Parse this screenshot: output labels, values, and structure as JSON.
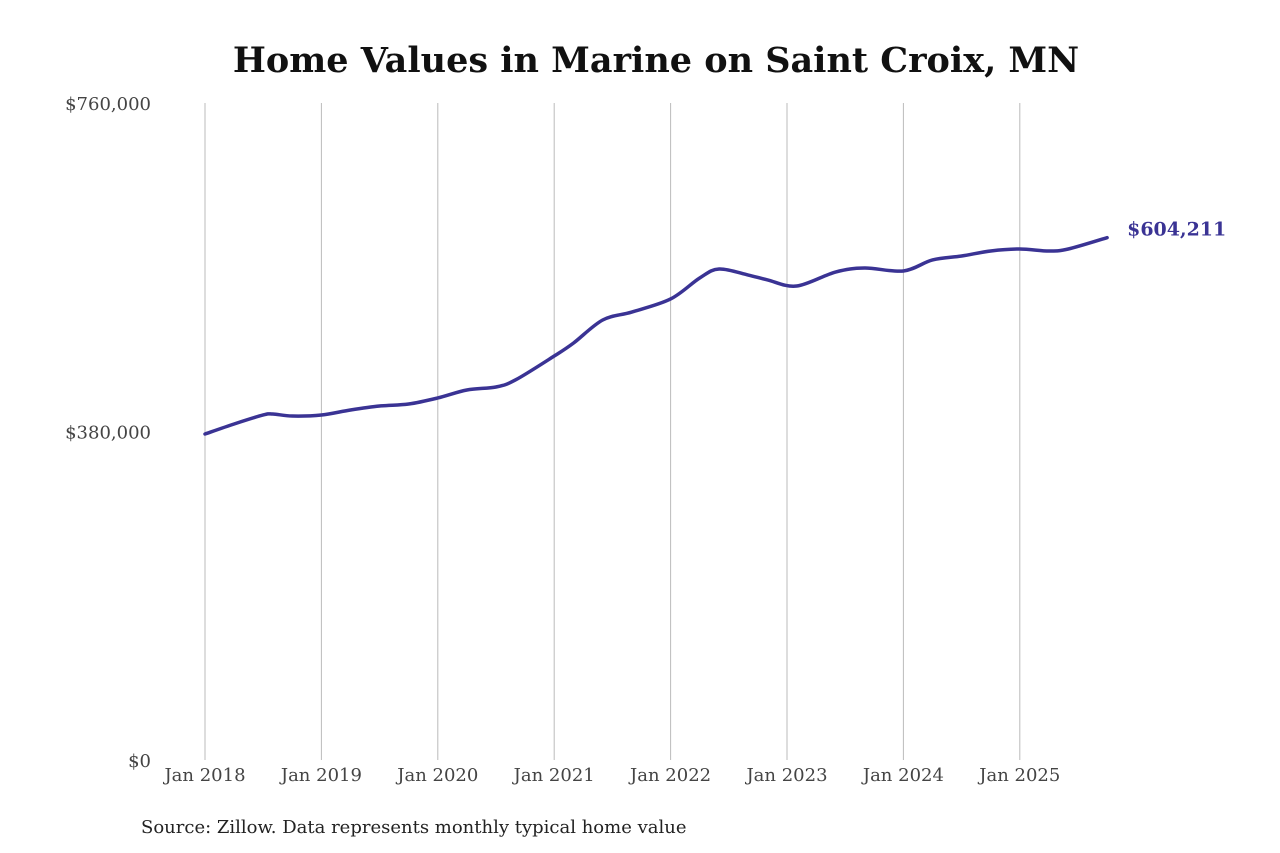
{
  "chart_data": {
    "type": "line",
    "title": "Home Values in Marine on Saint Croix, MN",
    "xlabel": "",
    "ylabel": "",
    "ylim": [
      0,
      760000
    ],
    "y_ticks": [
      "$0",
      "$380,000",
      "$760,000"
    ],
    "y_tick_values": [
      0,
      380000,
      760000
    ],
    "x_ticks": [
      "Jan 2018",
      "Jan 2019",
      "Jan 2020",
      "Jan 2021",
      "Jan 2022",
      "Jan 2023",
      "Jan 2024",
      "Jan 2025"
    ],
    "x_tick_dates": [
      "2018-01",
      "2019-01",
      "2020-01",
      "2021-01",
      "2022-01",
      "2023-01",
      "2024-01",
      "2025-01"
    ],
    "grid": "vertical",
    "line_color": "#3a3394",
    "end_label": "$604,211",
    "series": [
      {
        "x": [
          "2018-01",
          "2018-04",
          "2018-07",
          "2018-08",
          "2018-10",
          "2019-01",
          "2019-04",
          "2019-07",
          "2019-10",
          "2020-01",
          "2020-04",
          "2020-07",
          "2020-09",
          "2021-01",
          "2021-03",
          "2021-06",
          "2021-09",
          "2022-01",
          "2022-04",
          "2022-06",
          "2022-09",
          "2022-11",
          "2023-02",
          "2023-06",
          "2023-09",
          "2024-01",
          "2024-04",
          "2024-07",
          "2024-10",
          "2025-01",
          "2025-04",
          "2025-06",
          "2025-10"
        ],
        "y": [
          377100,
          388700,
          399100,
          400200,
          397900,
          399100,
          404900,
          409500,
          411800,
          418800,
          428000,
          431500,
          439600,
          467300,
          482400,
          509000,
          518200,
          533300,
          557600,
          568000,
          561000,
          555300,
          548300,
          564500,
          569100,
          565700,
          578400,
          583000,
          588800,
          591100,
          588800,
          591100,
          604211
        ]
      }
    ]
  },
  "source": "Source: Zillow. Data represents monthly typical home value"
}
